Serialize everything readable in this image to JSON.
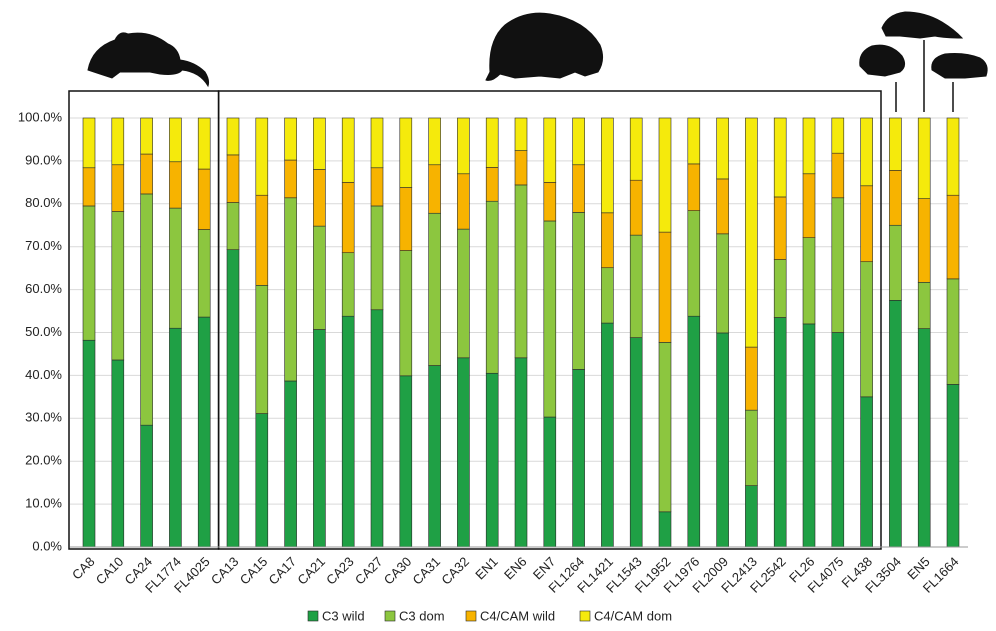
{
  "chart_data": {
    "type": "stacked_bar",
    "categories": [
      "CA8",
      "CA10",
      "CA24",
      "FL1774",
      "FL4025",
      "CA13",
      "CA15",
      "CA17",
      "CA21",
      "CA23",
      "CA27",
      "CA30",
      "CA31",
      "CA32",
      "EN1",
      "EN6",
      "EN7",
      "FL1264",
      "FL1421",
      "FL1543",
      "FL1952",
      "FL1976",
      "FL2009",
      "FL2413",
      "FL2542",
      "FL26",
      "FL4075",
      "FL438",
      "FL3504",
      "EN5",
      "FL1664"
    ],
    "series": [
      {
        "name": "C3 wild",
        "color": "#1fa045",
        "values": [
          48.2,
          43.6,
          28.4,
          51.0,
          53.6,
          69.3,
          31.1,
          38.7,
          50.7,
          53.8,
          55.3,
          39.9,
          42.3,
          44.1,
          40.5,
          44.1,
          30.3,
          41.4,
          52.2,
          48.8,
          8.2,
          53.8,
          49.9,
          14.3,
          53.5,
          52.0,
          50.0,
          35.0,
          57.5,
          50.9,
          37.9
        ]
      },
      {
        "name": "C3 dom",
        "color": "#8cc63f",
        "values": [
          31.3,
          34.6,
          53.9,
          28.0,
          20.4,
          11.0,
          29.9,
          42.7,
          24.1,
          14.8,
          24.2,
          29.2,
          35.5,
          30.0,
          40.1,
          40.3,
          45.7,
          36.6,
          12.9,
          23.9,
          39.5,
          24.6,
          23.1,
          17.6,
          13.5,
          20.1,
          31.4,
          31.5,
          17.5,
          10.8,
          24.6
        ]
      },
      {
        "name": "C4/CAM wild",
        "color": "#f7b300",
        "values": [
          8.9,
          10.9,
          9.3,
          10.8,
          14.1,
          11.1,
          21.0,
          8.8,
          13.2,
          16.4,
          8.9,
          14.7,
          11.3,
          12.9,
          7.9,
          8.0,
          9.0,
          11.1,
          12.8,
          12.8,
          25.7,
          10.9,
          12.8,
          14.7,
          14.6,
          14.9,
          10.4,
          17.7,
          12.8,
          19.5,
          19.5
        ]
      },
      {
        "name": "C4/CAM dom",
        "color": "#f5ea0c",
        "values": [
          11.6,
          10.9,
          8.4,
          10.2,
          11.9,
          8.6,
          18.0,
          9.8,
          12.0,
          15.0,
          11.6,
          16.2,
          10.9,
          13.0,
          11.5,
          7.6,
          15.0,
          10.9,
          22.1,
          14.5,
          26.6,
          10.7,
          14.2,
          53.4,
          18.4,
          13.0,
          8.2,
          15.8,
          12.2,
          18.8,
          18.0
        ]
      }
    ],
    "ylim": [
      0,
      100
    ],
    "yticks": [
      {
        "value": 0,
        "label": "0.0%"
      },
      {
        "value": 10,
        "label": "10.0%"
      },
      {
        "value": 20,
        "label": "20.0%"
      },
      {
        "value": 30,
        "label": "30.0%"
      },
      {
        "value": 40,
        "label": "40.0%"
      },
      {
        "value": 50,
        "label": "50.0%"
      },
      {
        "value": 60,
        "label": "60.0%"
      },
      {
        "value": 70,
        "label": "70.0%"
      },
      {
        "value": 80,
        "label": "80.0%"
      },
      {
        "value": 90,
        "label": "90.0%"
      },
      {
        "value": 100,
        "label": "100.0%"
      }
    ],
    "grid": true,
    "legend": "bottom"
  }
}
